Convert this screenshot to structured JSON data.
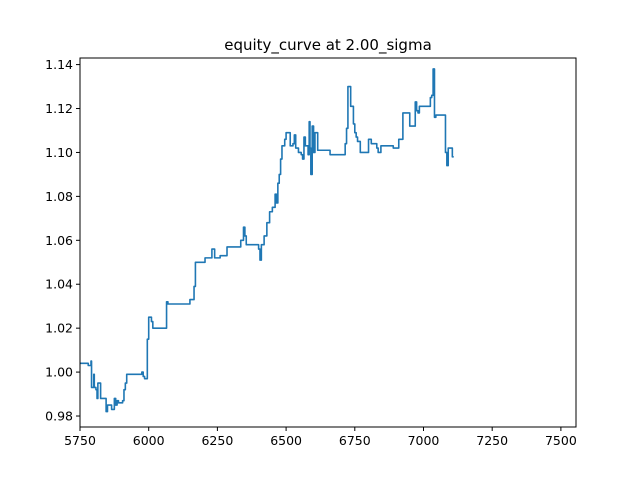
{
  "chart_data": {
    "type": "line",
    "title": "equity_curve at 2.00_sigma",
    "xlabel": "",
    "ylabel": "",
    "xlim": [
      5750,
      7555
    ],
    "ylim": [
      0.975,
      1.143
    ],
    "grid": false,
    "x_ticks": [
      {
        "value": 5750,
        "label": "5750"
      },
      {
        "value": 6000,
        "label": "6000"
      },
      {
        "value": 6250,
        "label": "6250"
      },
      {
        "value": 6500,
        "label": "6500"
      },
      {
        "value": 6750,
        "label": "6750"
      },
      {
        "value": 7000,
        "label": "7000"
      },
      {
        "value": 7250,
        "label": "7250"
      },
      {
        "value": 7500,
        "label": "7500"
      }
    ],
    "y_ticks": [
      {
        "value": 0.98,
        "label": "0.98"
      },
      {
        "value": 1.0,
        "label": "1.00"
      },
      {
        "value": 1.02,
        "label": "1.02"
      },
      {
        "value": 1.04,
        "label": "1.04"
      },
      {
        "value": 1.06,
        "label": "1.06"
      },
      {
        "value": 1.08,
        "label": "1.08"
      },
      {
        "value": 1.1,
        "label": "1.10"
      },
      {
        "value": 1.12,
        "label": "1.12"
      },
      {
        "value": 1.14,
        "label": "1.14"
      }
    ],
    "series": [
      {
        "color": "#1f77b4",
        "step": true,
        "points": [
          [
            5750,
            1.004
          ],
          [
            5770,
            1.004
          ],
          [
            5780,
            1.003
          ],
          [
            5790,
            1.005
          ],
          [
            5792,
            0.993
          ],
          [
            5800,
            0.999
          ],
          [
            5802,
            0.993
          ],
          [
            5808,
            0.992
          ],
          [
            5812,
            0.988
          ],
          [
            5815,
            0.995
          ],
          [
            5825,
            0.988
          ],
          [
            5845,
            0.982
          ],
          [
            5850,
            0.985
          ],
          [
            5860,
            0.985
          ],
          [
            5865,
            0.983
          ],
          [
            5875,
            0.988
          ],
          [
            5880,
            0.985
          ],
          [
            5885,
            0.987
          ],
          [
            5890,
            0.986
          ],
          [
            5905,
            0.987
          ],
          [
            5910,
            0.992
          ],
          [
            5915,
            0.995
          ],
          [
            5920,
            0.999
          ],
          [
            5975,
            1.0
          ],
          [
            5980,
            0.998
          ],
          [
            5985,
            0.997
          ],
          [
            5995,
            1.015
          ],
          [
            6000,
            1.025
          ],
          [
            6010,
            1.023
          ],
          [
            6015,
            1.02
          ],
          [
            6060,
            1.02
          ],
          [
            6065,
            1.032
          ],
          [
            6070,
            1.031
          ],
          [
            6145,
            1.031
          ],
          [
            6150,
            1.033
          ],
          [
            6165,
            1.039
          ],
          [
            6170,
            1.05
          ],
          [
            6190,
            1.05
          ],
          [
            6200,
            1.05
          ],
          [
            6205,
            1.052
          ],
          [
            6225,
            1.052
          ],
          [
            6230,
            1.056
          ],
          [
            6240,
            1.052
          ],
          [
            6260,
            1.053
          ],
          [
            6280,
            1.053
          ],
          [
            6285,
            1.057
          ],
          [
            6330,
            1.057
          ],
          [
            6335,
            1.06
          ],
          [
            6345,
            1.066
          ],
          [
            6350,
            1.062
          ],
          [
            6355,
            1.058
          ],
          [
            6360,
            1.058
          ],
          [
            6395,
            1.058
          ],
          [
            6400,
            1.056
          ],
          [
            6405,
            1.051
          ],
          [
            6410,
            1.058
          ],
          [
            6420,
            1.062
          ],
          [
            6430,
            1.068
          ],
          [
            6440,
            1.073
          ],
          [
            6450,
            1.075
          ],
          [
            6460,
            1.081
          ],
          [
            6465,
            1.077
          ],
          [
            6470,
            1.086
          ],
          [
            6475,
            1.09
          ],
          [
            6480,
            1.097
          ],
          [
            6485,
            1.103
          ],
          [
            6495,
            1.106
          ],
          [
            6500,
            1.109
          ],
          [
            6515,
            1.103
          ],
          [
            6525,
            1.104
          ],
          [
            6530,
            1.108
          ],
          [
            6535,
            1.102
          ],
          [
            6545,
            1.1
          ],
          [
            6555,
            1.099
          ],
          [
            6560,
            1.097
          ],
          [
            6565,
            1.107
          ],
          [
            6570,
            1.103
          ],
          [
            6580,
            1.099
          ],
          [
            6584,
            1.114
          ],
          [
            6587,
            1.102
          ],
          [
            6590,
            1.09
          ],
          [
            6595,
            1.112
          ],
          [
            6600,
            1.1
          ],
          [
            6605,
            1.109
          ],
          [
            6615,
            1.101
          ],
          [
            6650,
            1.101
          ],
          [
            6660,
            1.099
          ],
          [
            6710,
            1.099
          ],
          [
            6715,
            1.104
          ],
          [
            6720,
            1.111
          ],
          [
            6725,
            1.13
          ],
          [
            6735,
            1.121
          ],
          [
            6745,
            1.113
          ],
          [
            6750,
            1.109
          ],
          [
            6755,
            1.107
          ],
          [
            6760,
            1.105
          ],
          [
            6770,
            1.1
          ],
          [
            6795,
            1.1
          ],
          [
            6800,
            1.106
          ],
          [
            6810,
            1.104
          ],
          [
            6830,
            1.102
          ],
          [
            6835,
            1.1
          ],
          [
            6845,
            1.103
          ],
          [
            6885,
            1.103
          ],
          [
            6890,
            1.102
          ],
          [
            6905,
            1.102
          ],
          [
            6910,
            1.106
          ],
          [
            6920,
            1.106
          ],
          [
            6925,
            1.118
          ],
          [
            6945,
            1.118
          ],
          [
            6950,
            1.112
          ],
          [
            6965,
            1.112
          ],
          [
            6970,
            1.123
          ],
          [
            6975,
            1.119
          ],
          [
            6980,
            1.118
          ],
          [
            6985,
            1.121
          ],
          [
            7020,
            1.121
          ],
          [
            7025,
            1.125
          ],
          [
            7030,
            1.126
          ],
          [
            7035,
            1.138
          ],
          [
            7040,
            1.116
          ],
          [
            7045,
            1.117
          ],
          [
            7075,
            1.117
          ],
          [
            7080,
            1.1
          ],
          [
            7085,
            1.094
          ],
          [
            7090,
            1.102
          ],
          [
            7100,
            1.102
          ],
          [
            7105,
            1.098
          ],
          [
            7110,
            1.098
          ]
        ]
      }
    ]
  }
}
